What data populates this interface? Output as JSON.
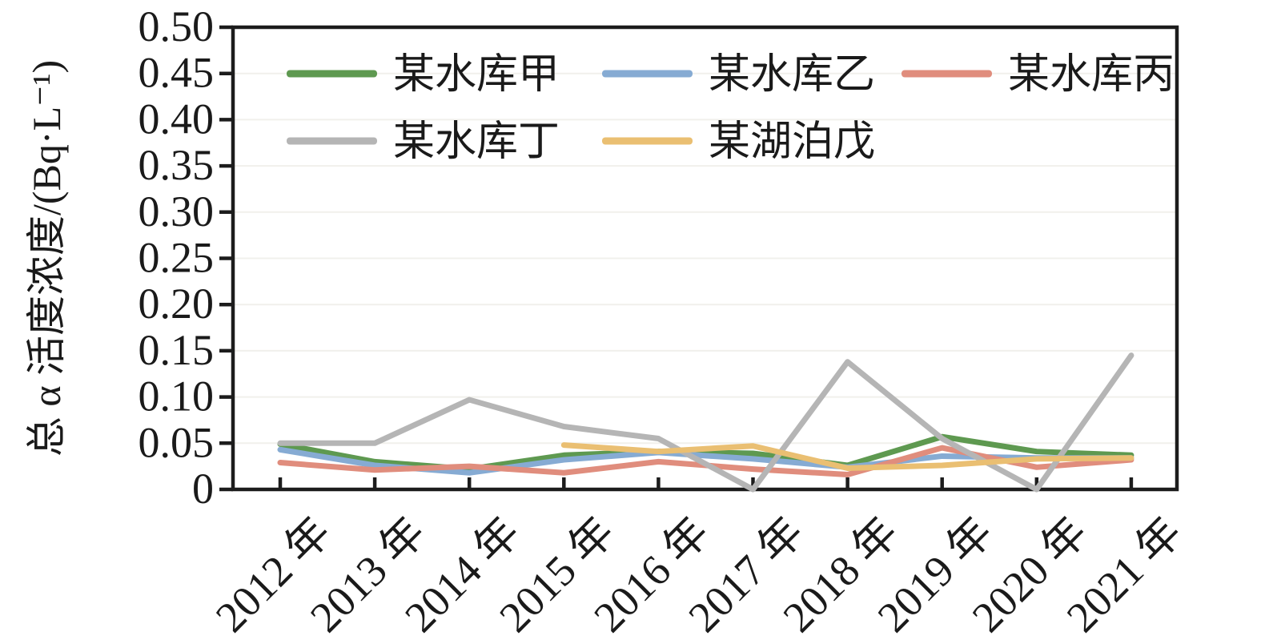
{
  "chart_data": {
    "type": "line",
    "title": "",
    "ylabel": "总 α 活度浓度/(Bq·L⁻¹)",
    "xlabel": "",
    "ylim": [
      0,
      0.5
    ],
    "ytick_interval": 0.05,
    "ytick_labels": [
      "0",
      "0.05",
      "0.10",
      "0.15",
      "0.20",
      "0.25",
      "0.30",
      "0.35",
      "0.40",
      "0.45",
      "0.50"
    ],
    "categories": [
      "2012 年",
      "2013 年",
      "2014 年",
      "2015 年",
      "2016 年",
      "2017 年",
      "2018 年",
      "2019 年",
      "2020 年",
      "2021 年"
    ],
    "grid": "horizontal-faint",
    "legend_position": "upper-left-two-rows-no-border",
    "legend_rows": [
      [
        0,
        1,
        2
      ],
      [
        3,
        4
      ]
    ],
    "axis_color": "#1c1c1c",
    "grid_color": "#f1f0ec",
    "series": [
      {
        "name": "某水库甲",
        "color": "#5e9950",
        "values": [
          0.049,
          0.03,
          0.022,
          0.037,
          0.041,
          0.039,
          0.026,
          0.057,
          0.041,
          0.037
        ]
      },
      {
        "name": "某水库乙",
        "color": "#86abd3",
        "values": [
          0.043,
          0.026,
          0.018,
          0.032,
          0.04,
          0.033,
          0.024,
          0.036,
          0.034,
          0.034
        ]
      },
      {
        "name": "某水库丙",
        "color": "#e08d7d",
        "values": [
          0.029,
          0.021,
          0.025,
          0.018,
          0.03,
          0.022,
          0.016,
          0.045,
          0.024,
          0.032
        ]
      },
      {
        "name": "某水库丁",
        "color": "#b5b5b5",
        "values": [
          0.05,
          0.05,
          0.097,
          0.068,
          0.055,
          0.0,
          0.138,
          0.055,
          0.0,
          0.145
        ]
      },
      {
        "name": "某湖泊戊",
        "color": "#eabf72",
        "values": [
          null,
          null,
          null,
          0.048,
          0.041,
          0.047,
          0.023,
          0.026,
          0.033,
          0.034
        ]
      }
    ]
  }
}
